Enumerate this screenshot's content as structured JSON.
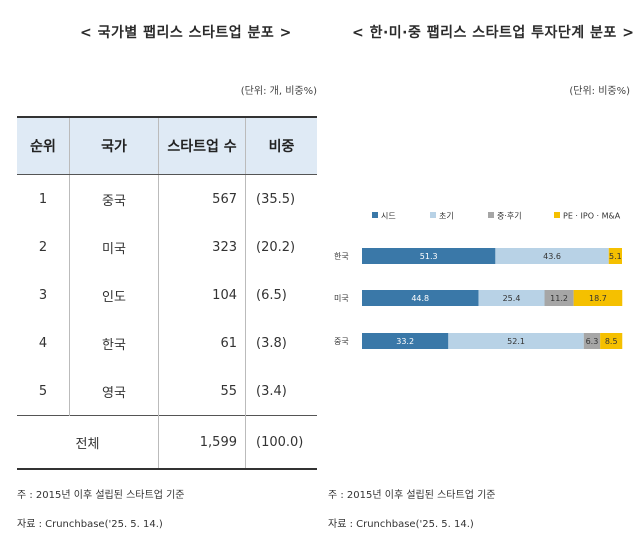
{
  "left": {
    "title": "< 국가별 팹리스 스타트업 분포 >",
    "unit": "(단위: 개, 비중%)",
    "headers": [
      "순위",
      "국가",
      "스타트업 수",
      "비중"
    ],
    "rows": [
      {
        "rank": "1",
        "country": "중국",
        "count": "567",
        "share": "(35.5)"
      },
      {
        "rank": "2",
        "country": "미국",
        "count": "323",
        "share": "(20.2)"
      },
      {
        "rank": "3",
        "country": "인도",
        "count": "104",
        "share": "(6.5)"
      },
      {
        "rank": "4",
        "country": "한국",
        "count": "61",
        "share": "(3.8)"
      },
      {
        "rank": "5",
        "country": "영국",
        "count": "55",
        "share": "(3.4)"
      }
    ],
    "total": {
      "label": "전체",
      "count": "1,599",
      "share": "(100.0)"
    },
    "note": "주 : 2015년 이후 설립된 스타트업 기준",
    "source": "자료 : Crunchbase('25. 5. 14.)"
  },
  "right": {
    "title": "< 한·미·중 팹리스 스타트업 투자단계 분포 >",
    "unit": "(단위: 비중%)",
    "note": "주 : 2015년 이후 설립된 스타트업 기준",
    "source": "자료 : Crunchbase('25. 5. 14.)"
  },
  "chart_data": {
    "type": "bar",
    "orientation": "horizontal",
    "stacked": true,
    "title": "< 한·미·중 팹리스 스타트업 투자단계 분포 >",
    "unit": "(단위: 비중%)",
    "categories": [
      "한국",
      "미국",
      "중국"
    ],
    "series": [
      {
        "name": "시드",
        "values": [
          51.3,
          44.8,
          33.2
        ],
        "color": "#3a78a8",
        "label_color": "#ffffff"
      },
      {
        "name": "초기",
        "values": [
          43.6,
          25.4,
          52.1
        ],
        "color": "#b8d2e6",
        "label_color": "#333333"
      },
      {
        "name": "중·후기",
        "values": [
          0,
          11.2,
          6.3
        ],
        "color": "#a6a6a6",
        "label_color": "#333333"
      },
      {
        "name": "PE · IPO · M&A",
        "values": [
          5.1,
          18.7,
          8.5
        ],
        "color": "#f5c000",
        "label_color": "#333333"
      }
    ],
    "xlim": [
      0,
      100
    ],
    "legend": "top",
    "grid": false
  }
}
